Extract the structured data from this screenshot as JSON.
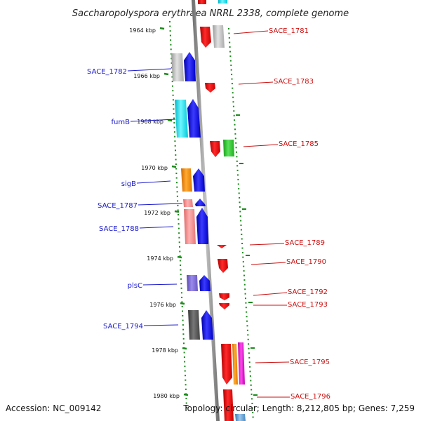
{
  "title": "Saccharopolyspora erythraea NRRL 2338, complete genome",
  "footer": {
    "accession": "Accession: NC_009142",
    "topology": "Topology: circular; Length: 8,212,805 bp; Genes: 7,259"
  },
  "kbp_ticks": [
    "1964 kbp",
    "1966 kbp",
    "1968 kbp",
    "1970 kbp",
    "1972 kbp",
    "1974 kbp",
    "1976 kbp",
    "1978 kbp",
    "1980 kbp"
  ],
  "left_labels": [
    "SACE_1782",
    "fumB",
    "sigB",
    "SACE_1787",
    "SACE_1788",
    "plsC",
    "SACE_1794"
  ],
  "right_labels": [
    "SACE_1781",
    "SACE_1783",
    "SACE_1785",
    "SACE_1789",
    "SACE_1790",
    "SACE_1792",
    "SACE_1793",
    "SACE_1795",
    "SACE_1796"
  ],
  "colors": {
    "forward": "#1010e0",
    "reverse": "#e01010",
    "backbone": "#8a8a8a",
    "tick": "#1a8a1a",
    "left_label": "#1a1acc",
    "right_label": "#cc1111"
  }
}
